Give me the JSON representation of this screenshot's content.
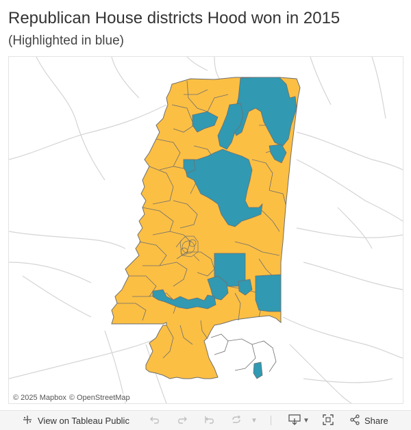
{
  "header": {
    "title": "Republican House districts Hood won in 2015",
    "subtitle": "(Highlighted in blue)"
  },
  "map": {
    "region": "Mississippi",
    "colors": {
      "highlighted": "#3199b1",
      "other": "#fbbf44",
      "border": "#6e6e6e",
      "roads": "#d4d4d4"
    },
    "attribution": {
      "mapbox": "© 2025 Mapbox",
      "osm": "© OpenStreetMap"
    }
  },
  "toolbar": {
    "view_label": "View on Tableau Public",
    "share_label": "Share",
    "icons": [
      "tableau-icon",
      "undo-icon",
      "redo-icon",
      "revert-icon",
      "refresh-icon",
      "download-icon",
      "fullscreen-icon",
      "share-icon"
    ]
  }
}
